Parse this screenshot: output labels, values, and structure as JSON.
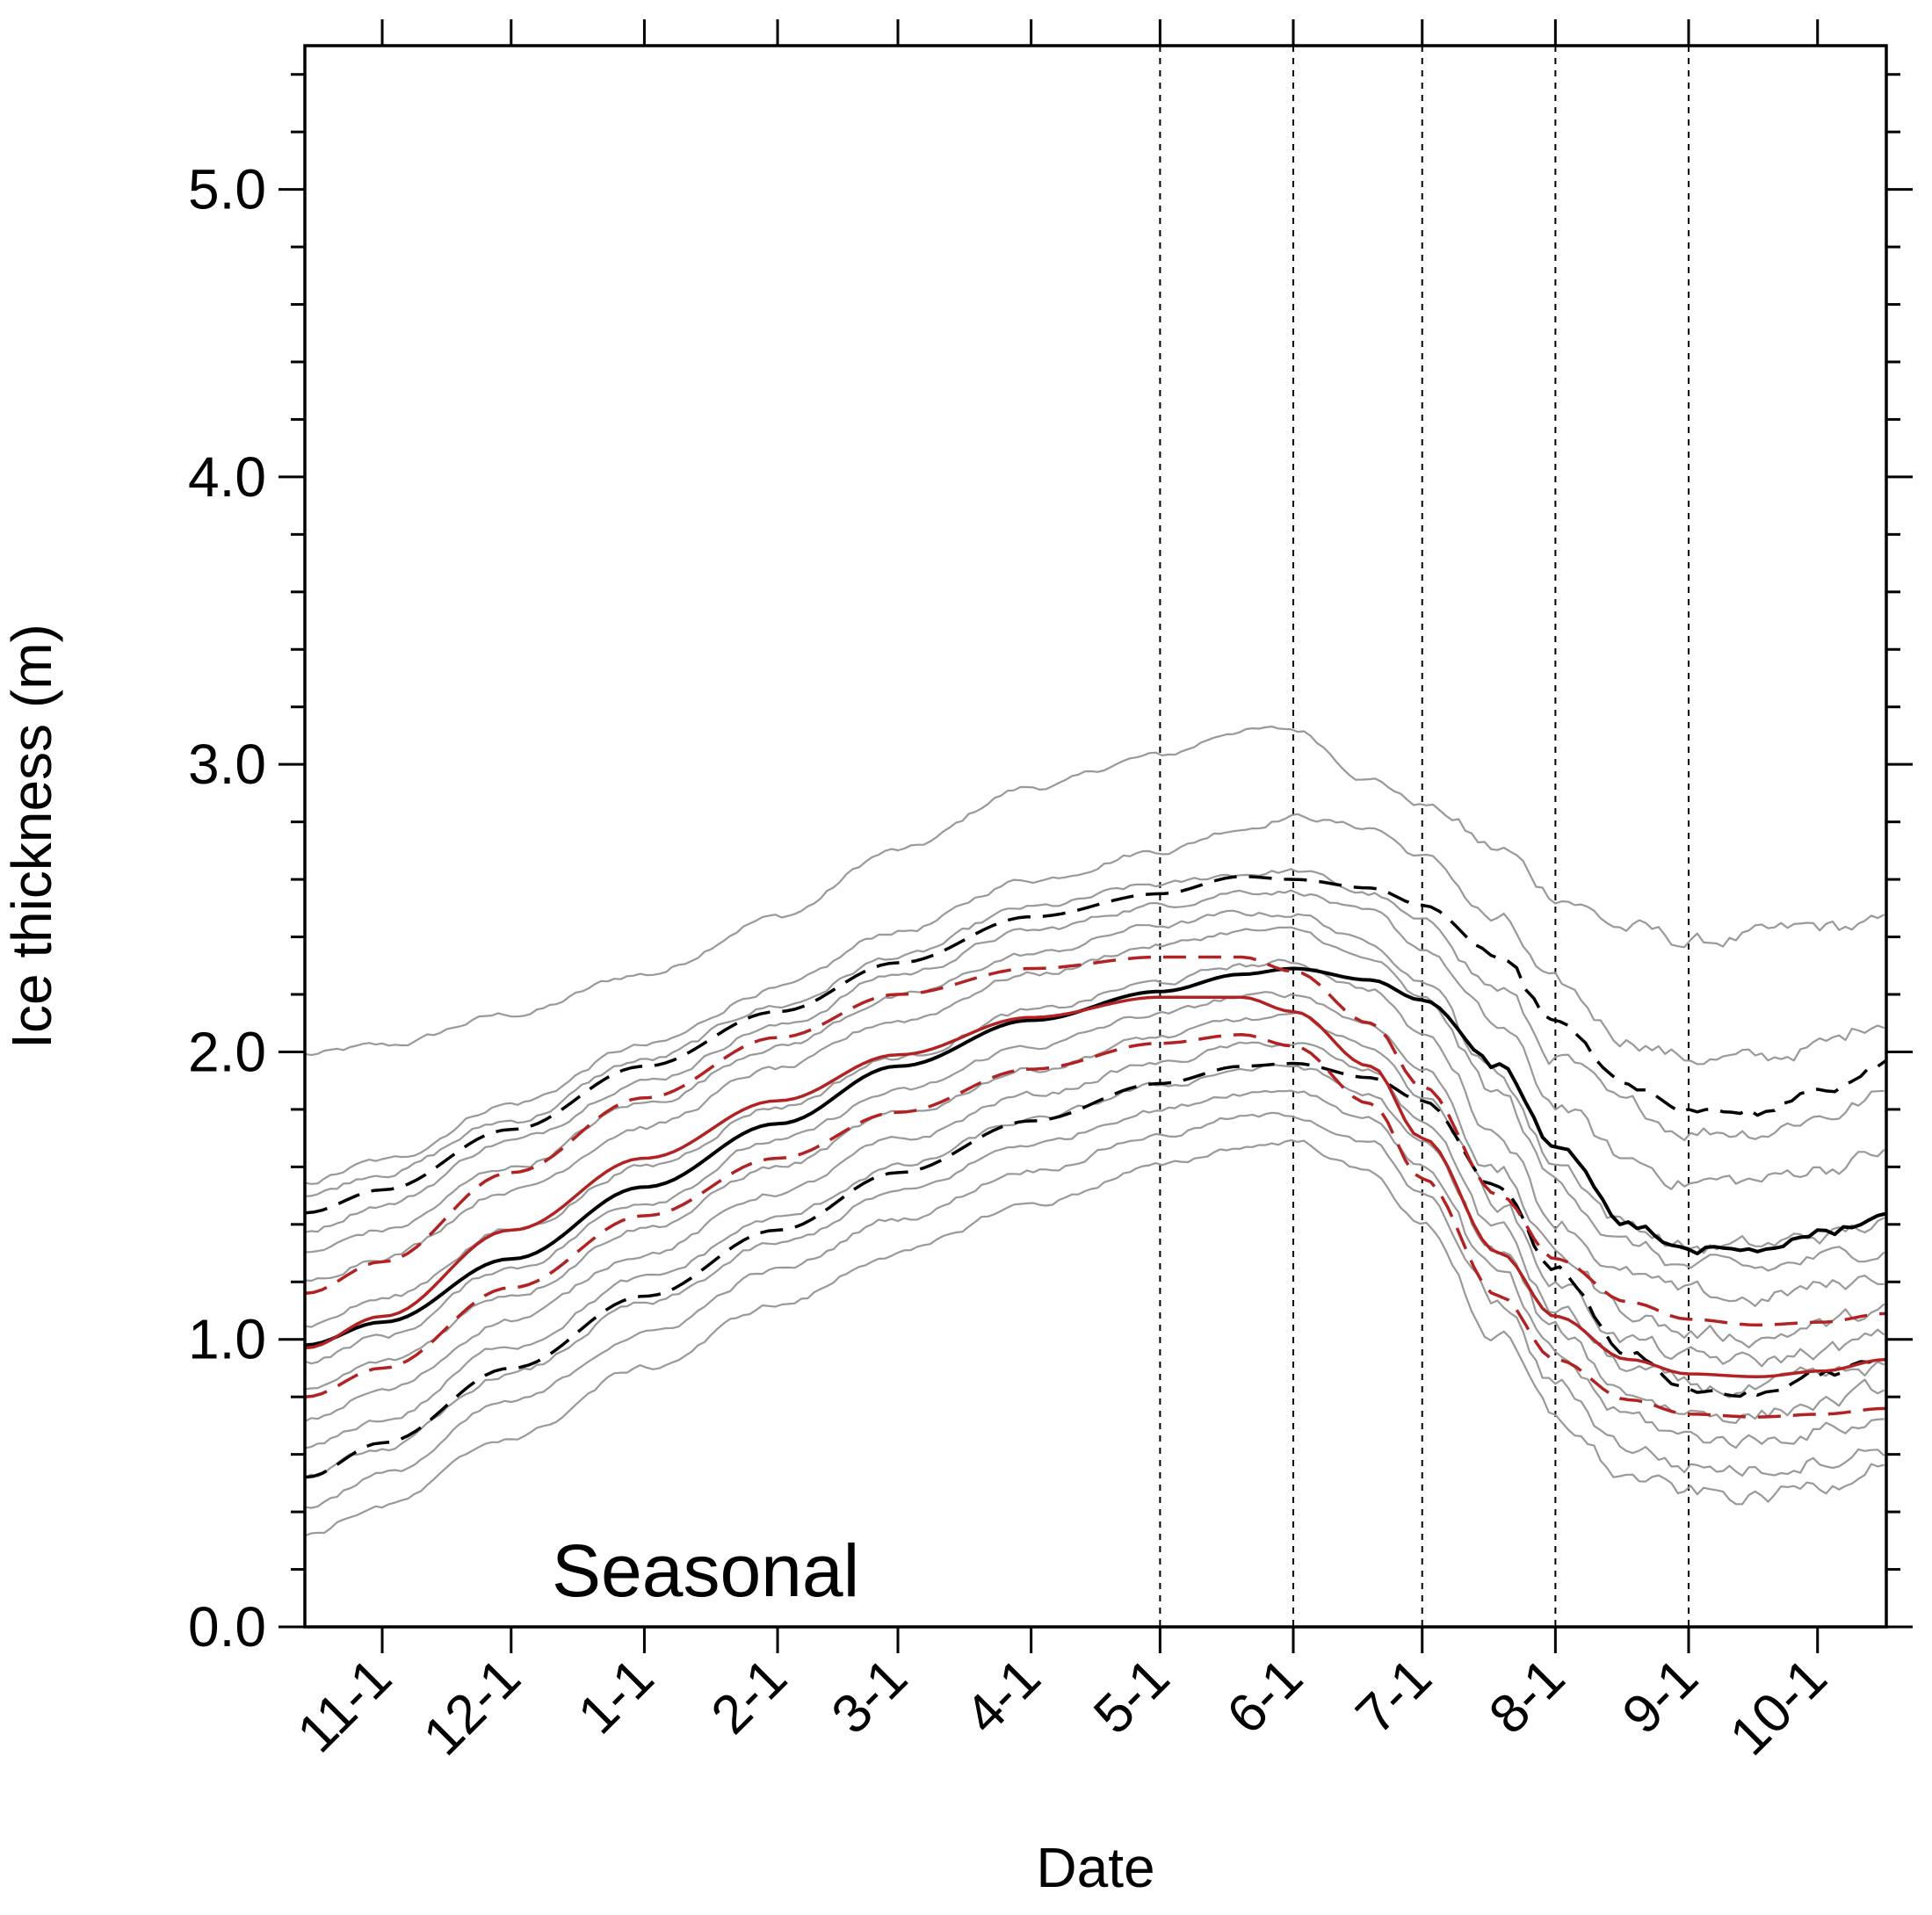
{
  "chart_data": {
    "type": "line",
    "annotation": "Seasonal",
    "xlabel": "Date",
    "ylabel": "Ice thickness (m)",
    "ylim": [
      0,
      5.5
    ],
    "xlim": [
      -18,
      350
    ],
    "y_ticks": [
      "0.0",
      "1.0",
      "2.0",
      "3.0",
      "4.0",
      "5.0"
    ],
    "x_ticks": [
      {
        "label": "11-1",
        "day": 0
      },
      {
        "label": "12-1",
        "day": 30
      },
      {
        "label": "1-1",
        "day": 61
      },
      {
        "label": "2-1",
        "day": 92
      },
      {
        "label": "3-1",
        "day": 120
      },
      {
        "label": "4-1",
        "day": 151
      },
      {
        "label": "5-1",
        "day": 181
      },
      {
        "label": "6-1",
        "day": 212
      },
      {
        "label": "7-1",
        "day": 242
      },
      {
        "label": "8-1",
        "day": 273
      },
      {
        "label": "9-1",
        "day": 304
      },
      {
        "label": "10-1",
        "day": 334
      }
    ],
    "vertical_reference_days": [
      181,
      212,
      242,
      273,
      304
    ],
    "colors": {
      "ensemble": "#999999",
      "black": "#000000",
      "red": "#b22222"
    },
    "series": [
      {
        "style": "black-solid",
        "x": [
          -18,
          0,
          30,
          61,
          92,
          120,
          151,
          181,
          200,
          212,
          230,
          242,
          260,
          273,
          290,
          304,
          320,
          335,
          350
        ],
        "values": [
          0.98,
          1.06,
          1.28,
          1.53,
          1.75,
          1.95,
          2.11,
          2.21,
          2.27,
          2.29,
          2.25,
          2.18,
          1.95,
          1.68,
          1.4,
          1.31,
          1.31,
          1.37,
          1.43
        ]
      },
      {
        "style": "black-dash",
        "x": [
          -18,
          0,
          30,
          61,
          92,
          120,
          151,
          181,
          200,
          212,
          230,
          242,
          260,
          273,
          290,
          304,
          320,
          335,
          350
        ],
        "values": [
          1.44,
          1.52,
          1.73,
          1.95,
          2.14,
          2.31,
          2.47,
          2.55,
          2.61,
          2.6,
          2.57,
          2.51,
          2.33,
          2.1,
          1.88,
          1.8,
          1.79,
          1.86,
          1.96
        ]
      },
      {
        "style": "black-dash",
        "x": [
          -18,
          0,
          30,
          61,
          92,
          120,
          151,
          181,
          200,
          212,
          230,
          242,
          260,
          273,
          290,
          304,
          320,
          335,
          350
        ],
        "values": [
          0.52,
          0.64,
          0.9,
          1.15,
          1.38,
          1.58,
          1.76,
          1.89,
          1.95,
          1.96,
          1.91,
          1.83,
          1.52,
          1.25,
          0.95,
          0.82,
          0.81,
          0.88,
          0.93
        ]
      },
      {
        "style": "red-solid",
        "x": [
          -18,
          0,
          30,
          61,
          92,
          120,
          151,
          181,
          200,
          212,
          230,
          242,
          260,
          273,
          290,
          304,
          320,
          335,
          350
        ],
        "values": [
          0.97,
          1.08,
          1.38,
          1.63,
          1.83,
          1.99,
          2.12,
          2.19,
          2.19,
          2.14,
          1.95,
          1.7,
          1.3,
          1.08,
          0.93,
          0.88,
          0.87,
          0.89,
          0.93
        ]
      },
      {
        "style": "red-dash",
        "x": [
          -18,
          0,
          30,
          61,
          92,
          120,
          151,
          181,
          200,
          212,
          230,
          242,
          260,
          273,
          290,
          304,
          320,
          335,
          350
        ],
        "values": [
          1.16,
          1.27,
          1.58,
          1.84,
          2.05,
          2.2,
          2.29,
          2.33,
          2.33,
          2.28,
          2.1,
          1.88,
          1.5,
          1.28,
          1.13,
          1.07,
          1.05,
          1.06,
          1.09
        ]
      },
      {
        "style": "red-dash",
        "x": [
          -18,
          0,
          30,
          61,
          92,
          120,
          151,
          181,
          200,
          212,
          230,
          242,
          260,
          273,
          290,
          304,
          320,
          335,
          350
        ],
        "values": [
          0.8,
          0.9,
          1.18,
          1.43,
          1.63,
          1.79,
          1.94,
          2.03,
          2.06,
          2.02,
          1.82,
          1.56,
          1.15,
          0.93,
          0.79,
          0.74,
          0.73,
          0.74,
          0.76
        ]
      },
      {
        "style": "ensemble",
        "x": [
          -18,
          0,
          30,
          61,
          92,
          120,
          151,
          181,
          200,
          212,
          230,
          242,
          260,
          273,
          290,
          304,
          320,
          335,
          350
        ],
        "values": [
          1.99,
          2.02,
          2.13,
          2.27,
          2.47,
          2.7,
          2.92,
          3.03,
          3.12,
          3.12,
          2.95,
          2.86,
          2.7,
          2.55,
          2.43,
          2.38,
          2.4,
          2.43,
          2.44
        ]
      },
      {
        "style": "ensemble",
        "x": [
          -18,
          0,
          30,
          61,
          92,
          120,
          151,
          181,
          200,
          212,
          230,
          242,
          260,
          273,
          290,
          304,
          320,
          335,
          350
        ],
        "values": [
          1.55,
          1.62,
          1.82,
          2.02,
          2.22,
          2.42,
          2.6,
          2.7,
          2.78,
          2.82,
          2.78,
          2.68,
          2.45,
          2.22,
          2.05,
          1.98,
          1.97,
          2.02,
          2.12
        ]
      },
      {
        "style": "ensemble",
        "x": [
          -18,
          0,
          30,
          61,
          92,
          120,
          151,
          181,
          200,
          212,
          230,
          242,
          260,
          273,
          290,
          304,
          320,
          335,
          350
        ],
        "values": [
          1.5,
          1.58,
          1.76,
          1.97,
          2.16,
          2.33,
          2.5,
          2.58,
          2.62,
          2.63,
          2.55,
          2.45,
          2.22,
          1.98,
          1.8,
          1.73,
          1.73,
          1.78,
          1.85
        ]
      },
      {
        "style": "ensemble",
        "x": [
          -18,
          0,
          30,
          61,
          92,
          120,
          151,
          181,
          200,
          212,
          230,
          242,
          260,
          273,
          290,
          304,
          320,
          335,
          350
        ],
        "values": [
          1.38,
          1.47,
          1.69,
          1.9,
          2.09,
          2.27,
          2.42,
          2.51,
          2.56,
          2.56,
          2.48,
          2.36,
          2.08,
          1.82,
          1.62,
          1.55,
          1.55,
          1.6,
          1.65
        ]
      },
      {
        "style": "ensemble",
        "x": [
          -18,
          0,
          30,
          61,
          92,
          120,
          151,
          181,
          200,
          212,
          230,
          242,
          260,
          273,
          290,
          304,
          320,
          335,
          350
        ],
        "values": [
          1.3,
          1.38,
          1.6,
          1.82,
          2.02,
          2.19,
          2.34,
          2.44,
          2.48,
          2.48,
          2.38,
          2.25,
          1.92,
          1.62,
          1.4,
          1.32,
          1.32,
          1.36,
          1.4
        ]
      },
      {
        "style": "ensemble",
        "x": [
          -18,
          0,
          30,
          61,
          92,
          120,
          151,
          181,
          200,
          212,
          230,
          242,
          260,
          273,
          290,
          304,
          320,
          335,
          350
        ],
        "values": [
          1.2,
          1.29,
          1.52,
          1.74,
          1.94,
          2.11,
          2.27,
          2.37,
          2.42,
          2.42,
          2.32,
          2.18,
          1.85,
          1.55,
          1.33,
          1.25,
          1.24,
          1.28,
          1.32
        ]
      },
      {
        "style": "ensemble",
        "x": [
          -18,
          0,
          30,
          61,
          92,
          120,
          151,
          181,
          200,
          212,
          230,
          242,
          260,
          273,
          290,
          304,
          320,
          335,
          350
        ],
        "values": [
          1.05,
          1.14,
          1.38,
          1.6,
          1.81,
          1.98,
          2.14,
          2.24,
          2.3,
          2.31,
          2.22,
          2.06,
          1.72,
          1.42,
          1.22,
          1.15,
          1.14,
          1.18,
          1.22
        ]
      },
      {
        "style": "ensemble",
        "x": [
          -18,
          0,
          30,
          61,
          92,
          120,
          151,
          181,
          200,
          212,
          230,
          242,
          260,
          273,
          290,
          304,
          320,
          335,
          350
        ],
        "values": [
          0.92,
          1.01,
          1.25,
          1.48,
          1.69,
          1.86,
          2.02,
          2.13,
          2.19,
          2.2,
          2.1,
          1.94,
          1.58,
          1.3,
          1.1,
          1.02,
          1.01,
          1.05,
          1.1
        ]
      },
      {
        "style": "ensemble",
        "x": [
          -18,
          0,
          30,
          61,
          92,
          120,
          151,
          181,
          200,
          212,
          230,
          242,
          260,
          273,
          290,
          304,
          320,
          335,
          350
        ],
        "values": [
          0.82,
          0.92,
          1.16,
          1.39,
          1.6,
          1.78,
          1.94,
          2.05,
          2.11,
          2.12,
          2.02,
          1.85,
          1.48,
          1.2,
          1.0,
          0.93,
          0.92,
          0.96,
          1.0
        ]
      },
      {
        "style": "ensemble",
        "x": [
          -18,
          0,
          30,
          61,
          92,
          120,
          151,
          181,
          200,
          212,
          230,
          242,
          260,
          273,
          290,
          304,
          320,
          335,
          350
        ],
        "values": [
          0.72,
          0.82,
          1.07,
          1.3,
          1.51,
          1.69,
          1.85,
          1.96,
          2.02,
          2.03,
          1.93,
          1.76,
          1.38,
          1.1,
          0.9,
          0.83,
          0.82,
          0.86,
          0.9
        ]
      },
      {
        "style": "ensemble",
        "x": [
          -18,
          0,
          30,
          61,
          92,
          120,
          151,
          181,
          200,
          212,
          230,
          242,
          260,
          273,
          290,
          304,
          320,
          335,
          350
        ],
        "values": [
          0.62,
          0.72,
          0.98,
          1.21,
          1.42,
          1.6,
          1.76,
          1.88,
          1.94,
          1.95,
          1.85,
          1.68,
          1.3,
          1.02,
          0.82,
          0.75,
          0.74,
          0.78,
          0.82
        ]
      },
      {
        "style": "ensemble",
        "x": [
          -18,
          0,
          30,
          61,
          92,
          120,
          151,
          181,
          200,
          212,
          230,
          242,
          260,
          273,
          290,
          304,
          320,
          335,
          350
        ],
        "values": [
          0.52,
          0.62,
          0.88,
          1.12,
          1.33,
          1.51,
          1.68,
          1.8,
          1.86,
          1.87,
          1.77,
          1.6,
          1.22,
          0.93,
          0.73,
          0.66,
          0.65,
          0.69,
          0.72
        ]
      },
      {
        "style": "ensemble",
        "x": [
          -18,
          0,
          30,
          61,
          92,
          120,
          151,
          181,
          200,
          212,
          230,
          242,
          260,
          273,
          290,
          304,
          320,
          335,
          350
        ],
        "values": [
          0.42,
          0.53,
          0.78,
          1.02,
          1.24,
          1.42,
          1.59,
          1.71,
          1.77,
          1.78,
          1.68,
          1.5,
          1.12,
          0.84,
          0.63,
          0.56,
          0.55,
          0.59,
          0.62
        ]
      },
      {
        "style": "ensemble",
        "x": [
          -18,
          0,
          30,
          61,
          92,
          120,
          151,
          181,
          200,
          212,
          230,
          242,
          260,
          273,
          290,
          304,
          320,
          335,
          350
        ],
        "values": [
          0.32,
          0.42,
          0.66,
          0.9,
          1.12,
          1.3,
          1.47,
          1.6,
          1.67,
          1.69,
          1.58,
          1.4,
          1.0,
          0.72,
          0.52,
          0.46,
          0.45,
          0.49,
          0.6
        ]
      }
    ]
  }
}
